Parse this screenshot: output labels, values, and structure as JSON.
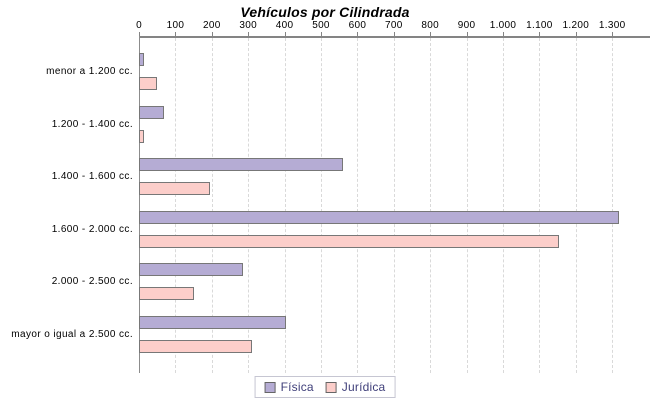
{
  "chart_data": {
    "type": "bar",
    "orientation": "horizontal",
    "title": "Vehículos por Cilindrada",
    "categories": [
      "menor a 1.200 cc.",
      "1.200 - 1.400 cc.",
      "1.400 - 1.600 cc.",
      "1.600 - 2.000 cc.",
      "2.000 - 2.500 cc.",
      "mayor o igual a 2.500 cc."
    ],
    "series": [
      {
        "name": "Física",
        "color": "#b5acd4",
        "values": [
          15,
          70,
          560,
          1320,
          285,
          405
        ]
      },
      {
        "name": "Jurídica",
        "color": "#fcceca",
        "values": [
          50,
          15,
          195,
          1155,
          150,
          310
        ]
      }
    ],
    "x_ticks": [
      0,
      100,
      200,
      300,
      400,
      500,
      600,
      700,
      800,
      900,
      1000,
      1100,
      1200,
      1300
    ],
    "x_tick_labels": [
      "0",
      "100",
      "200",
      "300",
      "400",
      "500",
      "600",
      "700",
      "800",
      "900",
      "1.000",
      "1.100",
      "1.200",
      "1.300"
    ],
    "xlim": [
      0,
      1400
    ],
    "grid": "vertical-dashed",
    "legend_position": "bottom-center"
  },
  "colors": {
    "background": "#ffffff",
    "axis": "#848484",
    "gridline": "#d9d9d9",
    "bar_border": "#777777",
    "fisica_fill": "#b5acd4",
    "juridica_fill": "#fcceca",
    "legend_text": "#3f3f7a",
    "legend_border": "#c6c6d2",
    "text": "#000000"
  }
}
